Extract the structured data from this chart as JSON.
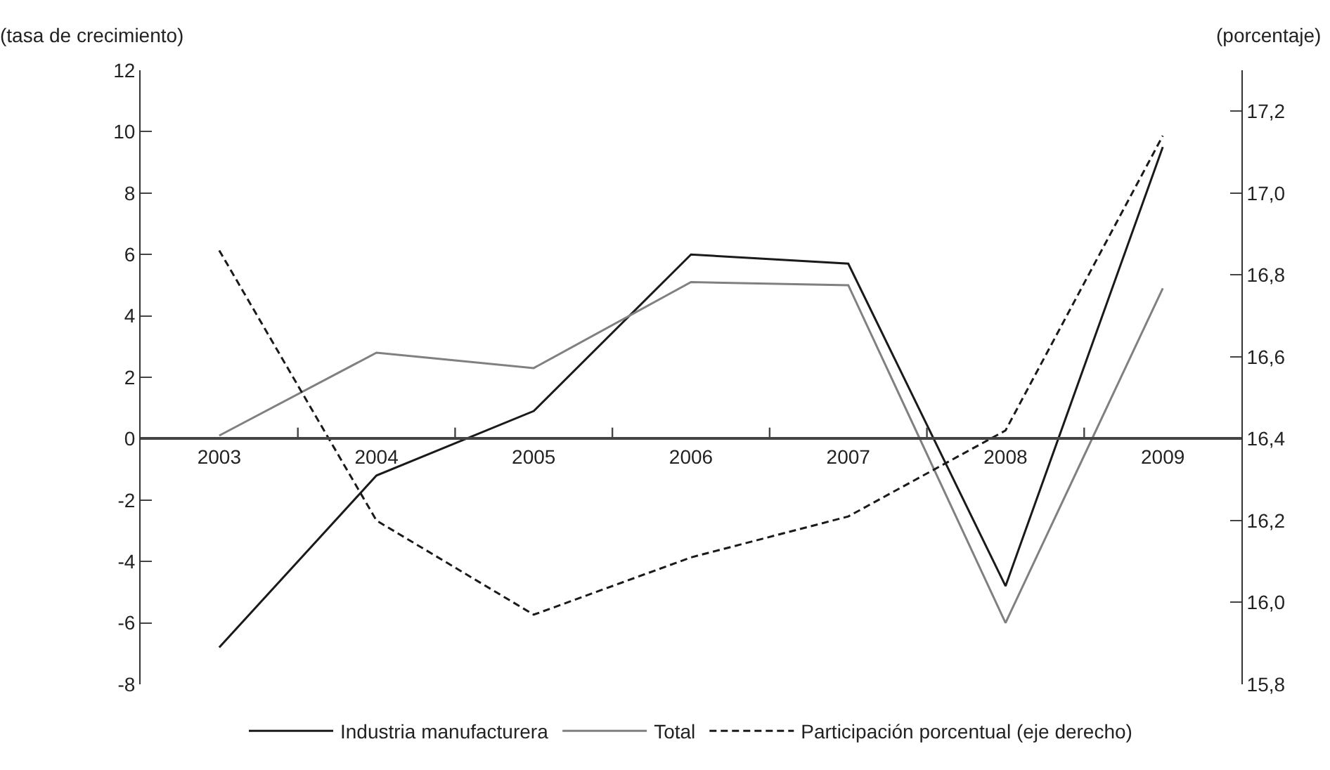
{
  "chart_data": {
    "type": "line",
    "ylabel": "(tasa de crecimiento)",
    "y2label": "(porcentaje)",
    "categories": [
      "2003",
      "2004",
      "2005",
      "2006",
      "2007",
      "2008",
      "2009"
    ],
    "series": [
      {
        "name": "Industria manufacturera",
        "color": "#1a1a1a",
        "values": [
          -6.8,
          -1.2,
          0.9,
          6.0,
          5.7,
          -4.8,
          9.5
        ]
      },
      {
        "name": "Total",
        "color": "#808080",
        "values": [
          0.1,
          2.8,
          2.3,
          5.1,
          5.0,
          -6.0,
          4.9
        ]
      },
      {
        "name": "Participación porcentual (eje derecho)",
        "color": "#1a1a1a",
        "axis": "y2",
        "line_style": "dashed",
        "values": [
          16.86,
          16.2,
          15.97,
          16.11,
          16.21,
          16.42,
          17.14
        ]
      }
    ],
    "ylim": [
      -8,
      12
    ],
    "yticks": [
      -8,
      -6,
      -4,
      -2,
      0,
      2,
      4,
      6,
      8,
      10,
      12
    ],
    "y2lim": [
      15.8,
      17.3
    ],
    "y2ticks": [
      {
        "value": 15.8,
        "label": "15,8"
      },
      {
        "value": 16.0,
        "label": "16,0"
      },
      {
        "value": 16.2,
        "label": "16,2"
      },
      {
        "value": 16.4,
        "label": "16,4"
      },
      {
        "value": 16.6,
        "label": "16,6"
      },
      {
        "value": 16.8,
        "label": "16,8"
      },
      {
        "value": 17.0,
        "label": "17,0"
      },
      {
        "value": 17.2,
        "label": "17,2"
      }
    ],
    "grid": false,
    "legend": "bottom",
    "marker": "none",
    "line_style": "solid"
  }
}
